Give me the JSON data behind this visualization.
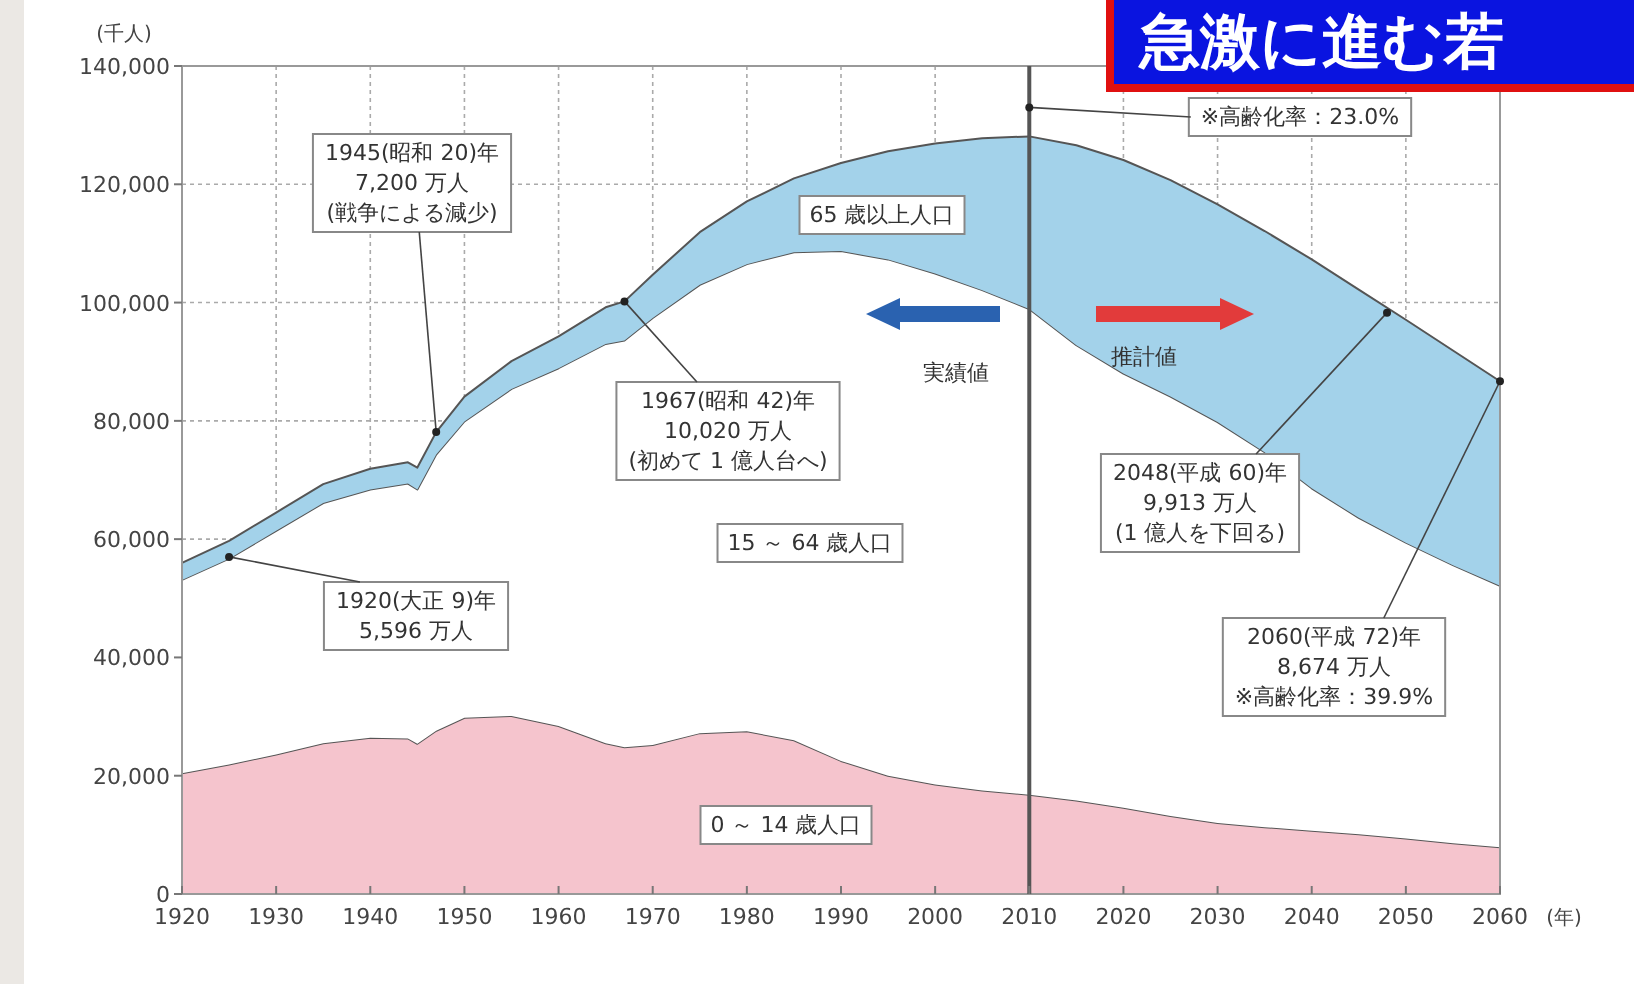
{
  "chart_data": {
    "type": "area",
    "stacked": true,
    "title": "急激に進む若",
    "xlabel": "(年)",
    "ylabel": "(千人)",
    "x": [
      1920,
      1925,
      1930,
      1935,
      1940,
      1944,
      1945,
      1947,
      1950,
      1955,
      1960,
      1965,
      1967,
      1970,
      1975,
      1980,
      1985,
      1990,
      1995,
      2000,
      2005,
      2010,
      2015,
      2020,
      2025,
      2030,
      2035,
      2040,
      2045,
      2050,
      2055,
      2060
    ],
    "series": [
      {
        "name": "0 ～ 14 歳人口",
        "color": "#f5c4cd",
        "values": [
          20400,
          21900,
          23600,
          25500,
          26400,
          26300,
          25400,
          27600,
          29800,
          30100,
          28400,
          25500,
          24800,
          25200,
          27200,
          27500,
          26000,
          22500,
          20000,
          18500,
          17500,
          16800,
          15800,
          14600,
          13200,
          12000,
          11300,
          10700,
          10100,
          9400,
          8600,
          7900
        ]
      },
      {
        "name": "15 ～ 64 歳人口",
        "color": "#ffffff",
        "values": [
          32700,
          34800,
          37800,
          40600,
          42000,
          43100,
          43000,
          46700,
          50100,
          55300,
          60500,
          67500,
          68800,
          72200,
          75800,
          79000,
          82500,
          86200,
          87300,
          86400,
          84600,
          82100,
          77000,
          73400,
          70900,
          67800,
          63400,
          57900,
          53500,
          50000,
          47000,
          44200
        ]
      },
      {
        "name": "65 歳以上人口",
        "color": "#a3d2ea",
        "values": [
          2900,
          3000,
          3100,
          3200,
          3500,
          3600,
          3700,
          3800,
          4200,
          4700,
          5400,
          6200,
          6600,
          7300,
          8900,
          10600,
          12500,
          14900,
          18300,
          22000,
          25700,
          29200,
          33800,
          36100,
          36600,
          36800,
          37400,
          38700,
          38600,
          37700,
          36300,
          34600
        ]
      }
    ],
    "xlim": [
      1920,
      2060
    ],
    "xticks": [
      1920,
      1930,
      1940,
      1950,
      1960,
      1970,
      1980,
      1990,
      2000,
      2010,
      2020,
      2030,
      2040,
      2050,
      2060
    ],
    "ylim": [
      0,
      140000
    ],
    "yticks": [
      0,
      {
        "value": 20000,
        "label": "20,000"
      },
      {
        "value": 40000,
        "label": "40,000"
      },
      {
        "value": 60000,
        "label": "60,000"
      },
      {
        "value": 80000,
        "label": "80,000"
      },
      {
        "value": 100000,
        "label": "100,000"
      },
      {
        "value": 120000,
        "label": "120,000"
      },
      {
        "value": 140000,
        "label": "140,000"
      }
    ],
    "grid": true,
    "ref_lines": [
      {
        "axis": "x",
        "value": 2010,
        "color": "#555555"
      }
    ],
    "annotations": [
      {
        "text": "1945(昭和 20)年\n7,200 万人\n(戦争による減少)",
        "x": 1947,
        "y": 78100
      },
      {
        "text": "1967(昭和 42)年\n10,020 万人\n(初めて 1 億人台へ)",
        "x": 1967,
        "y": 100200
      },
      {
        "text": "1920(大正 9)年\n5,596 万人",
        "x": 1925,
        "y": 57000
      },
      {
        "text": "2048(平成 60)年\n9,913 万人\n(1 億人を下回る)",
        "x": 2048,
        "y": 98300
      },
      {
        "text": "2060(平成 72)年\n8,674 万人\n※高齢化率：39.9%",
        "x": 2060,
        "y": 86700
      },
      {
        "text": "※高齢化率：23.0%",
        "x": 2010,
        "y": 133000
      },
      "実績値",
      "推計値"
    ]
  }
}
